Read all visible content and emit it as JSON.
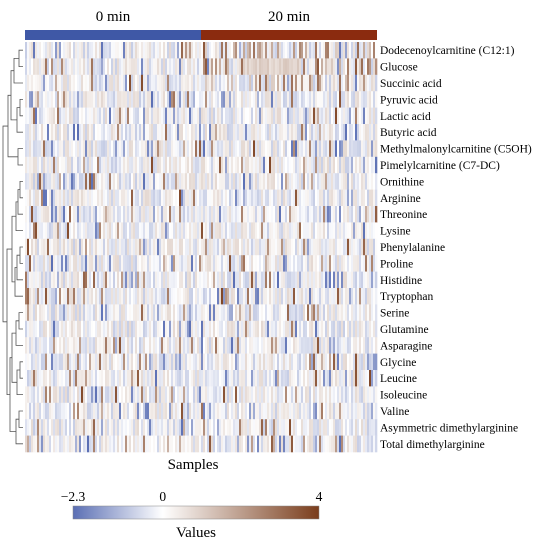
{
  "chart_data": {
    "type": "heatmap",
    "xlabel": "Samples",
    "column_groups": [
      {
        "label": "0 min",
        "color": "#3f58a6"
      },
      {
        "label": "20 min",
        "color": "#8b2b0f"
      }
    ],
    "rows": [
      "Dodecenoylcarnitine (C12:1)",
      "Glucose",
      "Succinic acid",
      "Pyruvic acid",
      "Lactic acid",
      "Butyric acid",
      "Methylmalonylcarnitine (C5OH)",
      "Pimelylcarnitine (C7-DC)",
      "Ornithine",
      "Arginine",
      "Threonine",
      "Lysine",
      "Phenylalanine",
      "Proline",
      "Histidine",
      "Tryptophan",
      "Serine",
      "Glutamine",
      "Asparagine",
      "Glycine",
      "Leucine",
      "Isoleucine",
      "Valine",
      "Asymmetric dimethylarginine",
      "Total dimethylarginine"
    ],
    "colorbar": {
      "title": "Values",
      "min": -2.3,
      "max": 4,
      "ticks": [
        -2.3,
        0,
        4
      ],
      "tick_labels": [
        "−2.3",
        "0",
        "4"
      ],
      "colors": [
        "#5b6fb4",
        "#ffffff",
        "#7a3d1c"
      ]
    },
    "dendrogram": "rows",
    "legend_position": "bottom"
  }
}
